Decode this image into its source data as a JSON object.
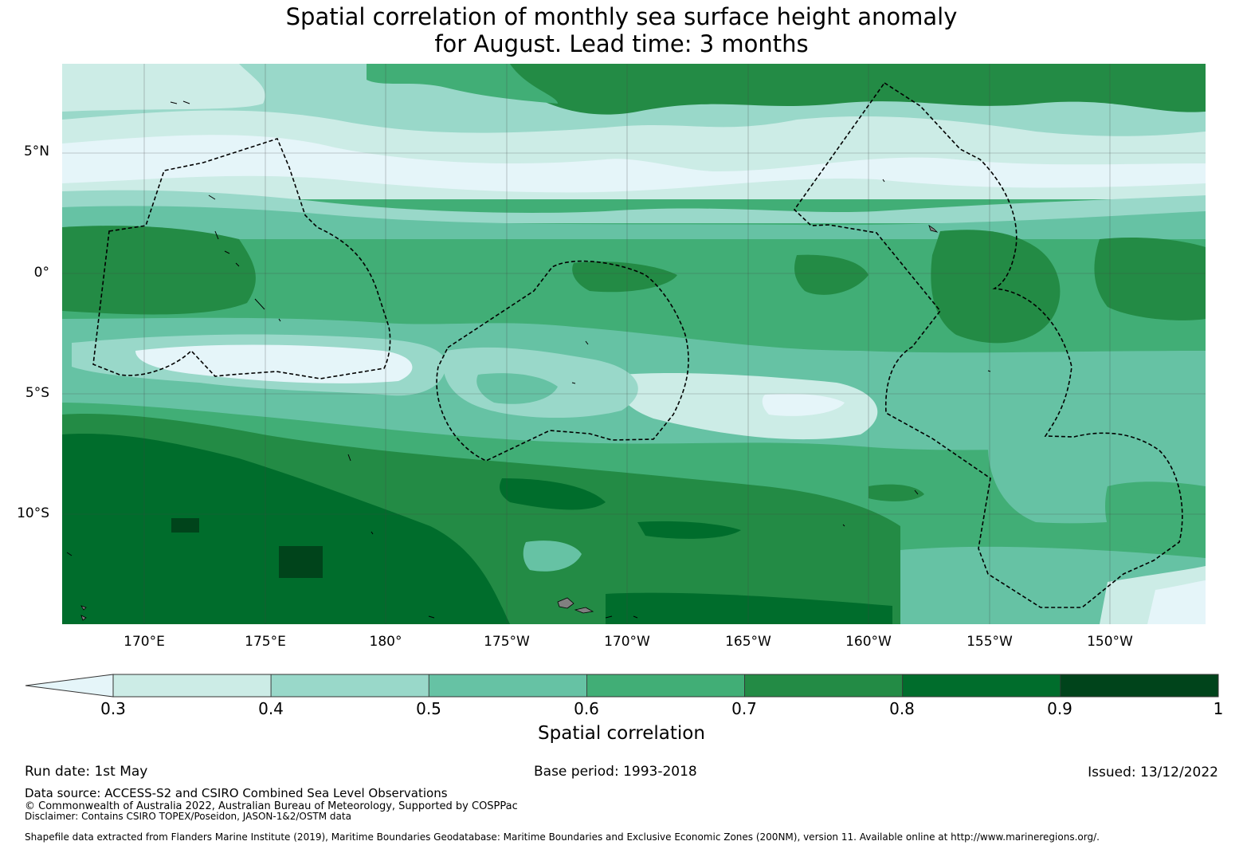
{
  "title": {
    "line1": "Spatial correlation of monthly sea surface height anomaly",
    "line2": "for August. Lead time: 3 months"
  },
  "map": {
    "y_axis_labels": [
      "5°N",
      "0°",
      "5°S",
      "10°S"
    ],
    "x_axis_labels": [
      "170°E",
      "175°E",
      "180°",
      "175°W",
      "170°W",
      "165°W",
      "160°W",
      "155°W",
      "150°W"
    ],
    "land_color": "#808080",
    "boundary_style": "dashed black EEZ outlines"
  },
  "colorbar": {
    "label": "Spatial correlation",
    "ticks": [
      "0.3",
      "0.4",
      "0.5",
      "0.6",
      "0.7",
      "0.8",
      "0.9",
      "1"
    ],
    "under_color": "#e5f5f9",
    "colors": [
      "#ccece6",
      "#99d8c9",
      "#66c2a4",
      "#41ae76",
      "#238b45",
      "#006d2c",
      "#00441b"
    ]
  },
  "footer": {
    "run_date": "Run date: 1st May",
    "base_period": "Base period: 1993-2018",
    "issued": "Issued: 13/12/2022",
    "data_source": "Data source: ACCESS-S2 and CSIRO Combined Sea Level Observations",
    "copyright": "© Commonwealth of Australia 2022, Australian Bureau of Meteorology, Supported by COSPPac",
    "disclaimer": "Disclaimer: Contains CSIRO TOPEX/Poseidon, JASON-1&2/OSTM data",
    "shapefile": "Shapefile data extracted from Flanders Marine Institute (2019), Maritime Boundaries Geodatabase: Maritime Boundaries and Exclusive Economic Zones (200NM), version 11. Available online at http://www.marineregions.org/."
  }
}
